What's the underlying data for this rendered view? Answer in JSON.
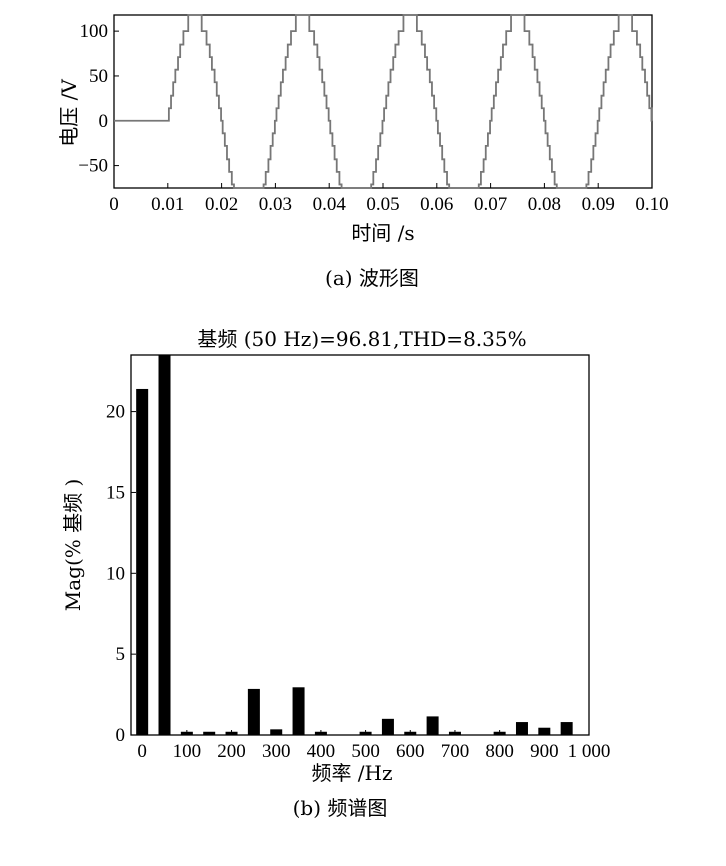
{
  "chart_data": [
    {
      "type": "line",
      "title": "",
      "xlabel": "时间 /s",
      "ylabel": "电压 /V",
      "caption": "(a) 波形图",
      "xlim": [
        0,
        0.1
      ],
      "ylim": [
        -75,
        118
      ],
      "x_ticks": [
        "0",
        "0.01",
        "0.02",
        "0.03",
        "0.04",
        "0.05",
        "0.06",
        "0.07",
        "0.08",
        "0.09",
        "0.10"
      ],
      "y_ticks": [
        "100",
        "50",
        "0",
        "−50"
      ],
      "y_tick_values": [
        100,
        50,
        0,
        -50
      ],
      "x_tick_values": [
        0,
        0.01,
        0.02,
        0.03,
        0.04,
        0.05,
        0.06,
        0.07,
        0.08,
        0.09,
        0.1
      ],
      "series": [
        {
          "start_time": 0.01,
          "frequency_hz": 50,
          "amplitude": 118,
          "staircase_levels": [
            0,
            14,
            28,
            43,
            57,
            71,
            85,
            100,
            118
          ],
          "color": "#777777"
        }
      ]
    },
    {
      "type": "bar",
      "title": "基频 (50 Hz)=96.81,THD=8.35%",
      "xlabel": "频率 /Hz",
      "ylabel": "Mag(% 基频 )",
      "caption": "(b) 频谱图",
      "xlim": [
        -25,
        1000
      ],
      "ylim": [
        0,
        23.5
      ],
      "x_ticks": [
        "0",
        "100",
        "200",
        "300",
        "400",
        "500",
        "600",
        "700",
        "800",
        "900",
        "1 000"
      ],
      "x_tick_values": [
        0,
        100,
        200,
        300,
        400,
        500,
        600,
        700,
        800,
        900,
        1000
      ],
      "y_ticks": [
        "20",
        "15",
        "10",
        "5",
        "0"
      ],
      "y_tick_values": [
        20,
        15,
        10,
        5,
        0
      ],
      "bars": [
        {
          "x": 0,
          "value": 21.4
        },
        {
          "x": 50,
          "value": 23.5
        },
        {
          "x": 100,
          "value": 0.2
        },
        {
          "x": 150,
          "value": 0.2
        },
        {
          "x": 200,
          "value": 0.2
        },
        {
          "x": 250,
          "value": 2.85
        },
        {
          "x": 300,
          "value": 0.35
        },
        {
          "x": 350,
          "value": 2.95
        },
        {
          "x": 400,
          "value": 0.2
        },
        {
          "x": 450,
          "value": 0
        },
        {
          "x": 500,
          "value": 0.2
        },
        {
          "x": 550,
          "value": 1.0
        },
        {
          "x": 600,
          "value": 0.2
        },
        {
          "x": 650,
          "value": 1.15
        },
        {
          "x": 700,
          "value": 0.2
        },
        {
          "x": 750,
          "value": 0
        },
        {
          "x": 800,
          "value": 0.2
        },
        {
          "x": 850,
          "value": 0.8
        },
        {
          "x": 900,
          "value": 0.45
        },
        {
          "x": 950,
          "value": 0.8
        }
      ],
      "bar_color": "#000000"
    }
  ]
}
